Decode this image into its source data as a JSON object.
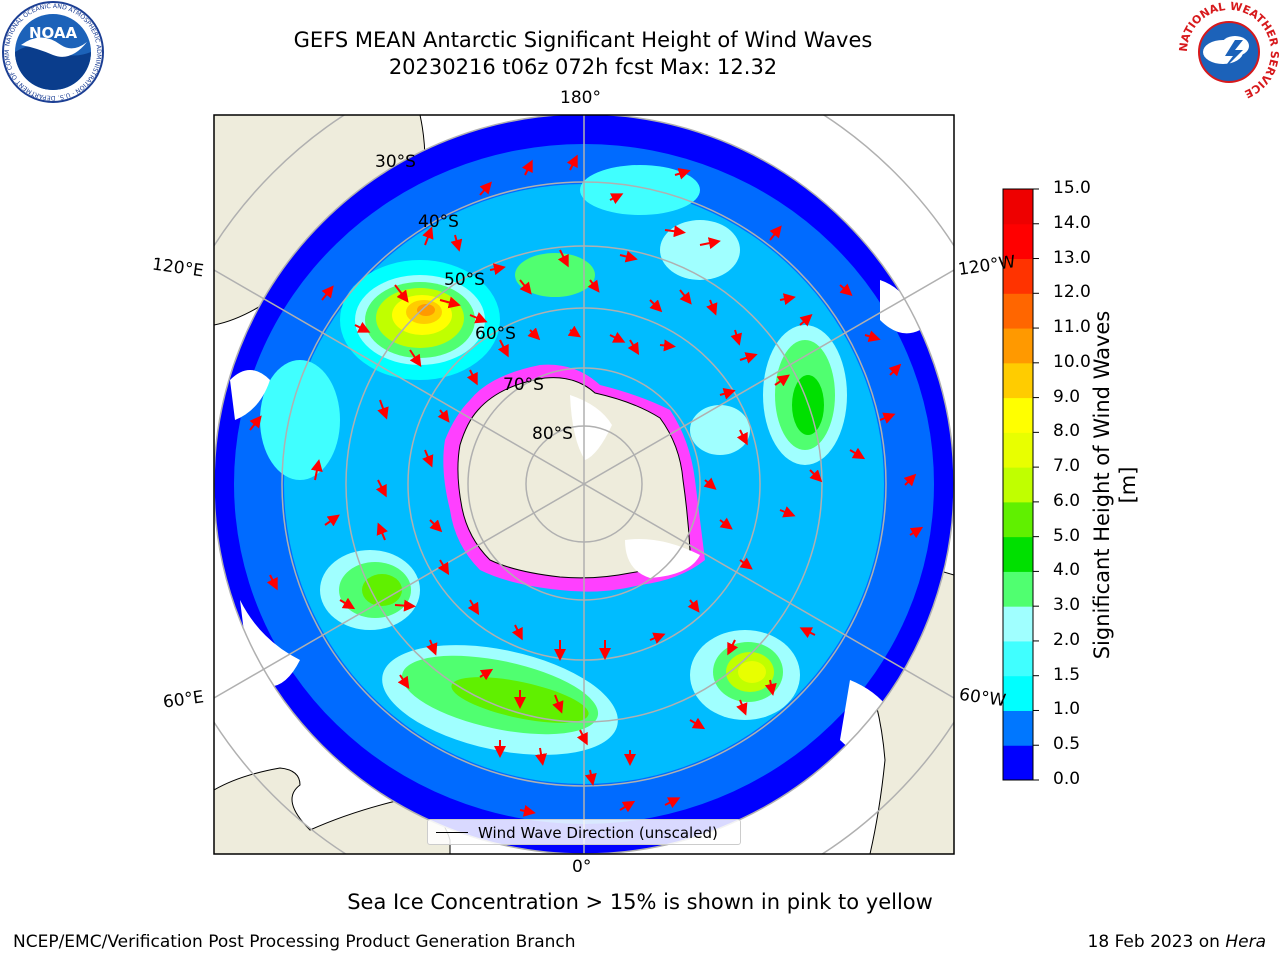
{
  "header": {
    "title_line1": "GEFS MEAN Antarctic Significant Height of Wind Waves",
    "title_line2": "20230216 t06z 072h fcst   Max: 12.32"
  },
  "map": {
    "projection": "south-polar-stereographic",
    "meridian_labels": {
      "top": "180°",
      "bottom": "0°",
      "upper_left": "120°E",
      "upper_right": "120°W",
      "lower_left": "60°E",
      "lower_right": "60°W"
    },
    "latitude_labels": [
      "30°S",
      "40°S",
      "50°S",
      "60°S",
      "70°S",
      "80°S"
    ],
    "legend_label": "Wind Wave Direction (unscaled)",
    "land_color": "#eeecdc",
    "sea_ice_color": "#ff40ff",
    "arrow_color": "#ff0000"
  },
  "colorbar": {
    "label": "Significant Height of Wind Waves [m]",
    "ticks": [
      "0.0",
      "0.5",
      "1.0",
      "1.5",
      "2.0",
      "3.0",
      "4.0",
      "5.0",
      "6.0",
      "7.0",
      "8.0",
      "9.0",
      "10.0",
      "11.0",
      "12.0",
      "13.0",
      "14.0",
      "15.0"
    ],
    "colors": [
      "#0000ff",
      "#0077ff",
      "#00ffff",
      "#40ffff",
      "#a0ffff",
      "#50ff70",
      "#00e000",
      "#60f000",
      "#c0ff00",
      "#e8ff00",
      "#ffff00",
      "#ffcc00",
      "#ff9900",
      "#ff6600",
      "#ff3300",
      "#ff0000",
      "#ee0000"
    ]
  },
  "note": "Sea Ice Concentration > 15% is shown in pink to yellow",
  "footer": {
    "left": "NCEP/EMC/Verification Post Processing Product Generation Branch",
    "date": "18 Feb 2023 on",
    "machine": "Hera"
  },
  "logos": {
    "noaa_text": "NOAA",
    "noaa_ring": "NATIONAL OCEANIC AND ATMOSPHERIC ADMINISTRATION · U.S. DEPARTMENT OF COMMERCE",
    "nws_ring": "NATIONAL WEATHER SERVICE"
  }
}
